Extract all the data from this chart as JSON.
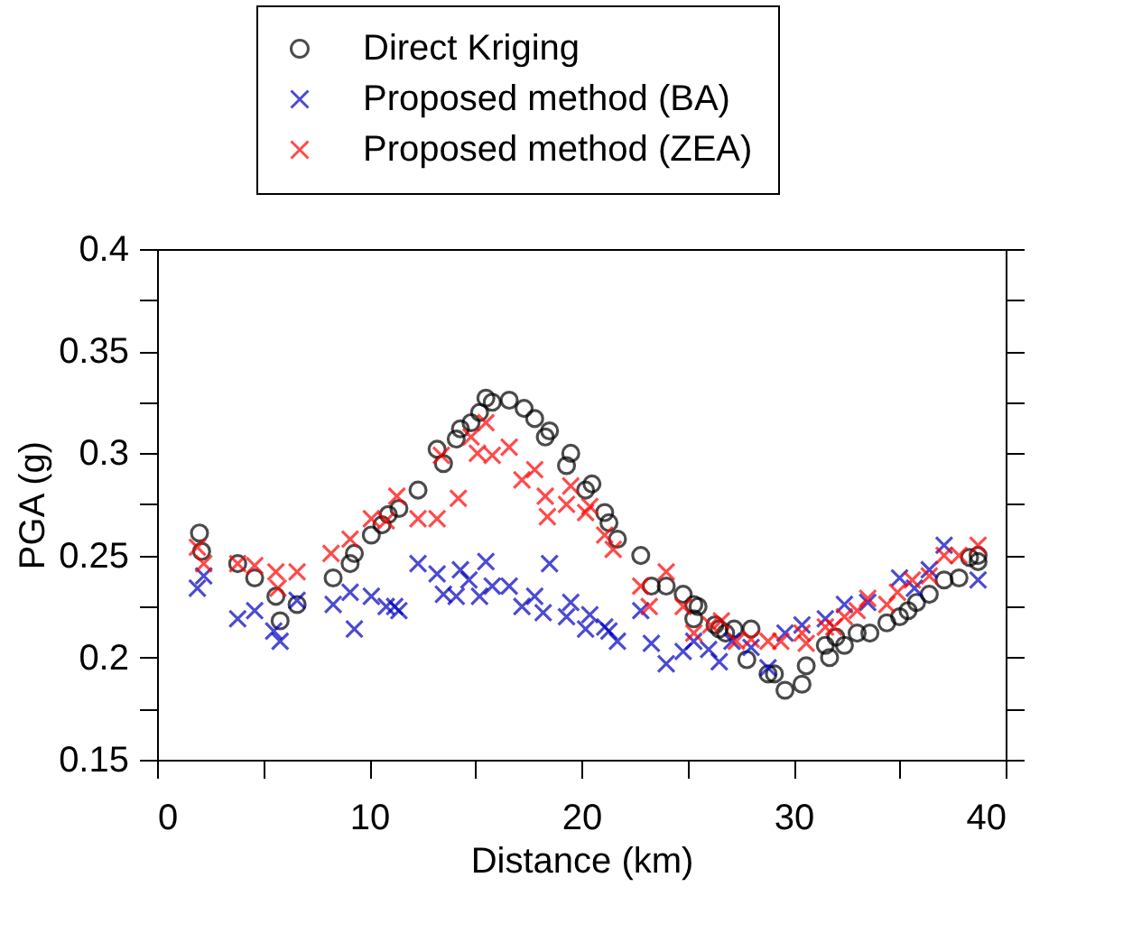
{
  "chart_data": {
    "type": "scatter",
    "xlabel": "Distance (km)",
    "ylabel": "PGA (g)",
    "xlim": [
      0,
      40
    ],
    "ylim": [
      0.15,
      0.4
    ],
    "xticks": [
      0,
      {
        "value": 5,
        "label": null
      },
      10,
      {
        "value": 15,
        "label": null
      },
      20,
      {
        "value": 25,
        "label": null
      },
      30,
      {
        "value": 35,
        "label": null
      },
      40
    ],
    "yticks": [
      0.15,
      {
        "value": 0.175,
        "label": null
      },
      0.2,
      {
        "value": 0.225,
        "label": null
      },
      0.25,
      {
        "value": 0.275,
        "label": null
      },
      0.3,
      {
        "value": 0.325,
        "label": null
      },
      0.35,
      {
        "value": 0.375,
        "label": null
      },
      0.4
    ],
    "grid": false,
    "legend": "top",
    "series": [
      {
        "name": "Direct Kriging",
        "color": "#000000",
        "marker": "circle",
        "x": [
          2.0,
          2.1,
          3.8,
          4.6,
          5.6,
          5.8,
          6.6,
          8.3,
          9.1,
          9.3,
          10.1,
          10.6,
          10.9,
          11.4,
          12.3,
          13.2,
          13.5,
          14.1,
          14.3,
          14.8,
          15.2,
          15.5,
          15.8,
          16.6,
          17.3,
          17.8,
          18.3,
          18.5,
          19.3,
          19.5,
          20.2,
          20.5,
          21.1,
          21.3,
          21.7,
          22.8,
          23.3,
          24.0,
          24.8,
          25.3,
          25.5,
          25.3,
          26.3,
          26.5,
          26.8,
          27.2,
          27.8,
          28.0,
          28.8,
          29.1,
          29.6,
          30.4,
          30.6,
          31.5,
          31.7,
          32.0,
          32.4,
          33.0,
          33.6,
          34.4,
          35.0,
          35.4,
          35.8,
          36.4,
          37.1,
          37.8,
          38.3,
          38.7,
          38.7
        ],
        "values": [
          0.261,
          0.252,
          0.246,
          0.239,
          0.23,
          0.218,
          0.226,
          0.239,
          0.246,
          0.251,
          0.26,
          0.265,
          0.27,
          0.273,
          0.282,
          0.302,
          0.295,
          0.307,
          0.312,
          0.315,
          0.32,
          0.327,
          0.325,
          0.326,
          0.322,
          0.317,
          0.308,
          0.311,
          0.294,
          0.3,
          0.282,
          0.285,
          0.271,
          0.266,
          0.258,
          0.25,
          0.235,
          0.235,
          0.231,
          0.226,
          0.225,
          0.219,
          0.216,
          0.214,
          0.212,
          0.214,
          0.199,
          0.214,
          0.192,
          0.192,
          0.184,
          0.187,
          0.196,
          0.206,
          0.2,
          0.21,
          0.206,
          0.212,
          0.212,
          0.217,
          0.22,
          0.223,
          0.227,
          0.231,
          0.238,
          0.239,
          0.249,
          0.25,
          0.247
        ]
      },
      {
        "name": "Proposed method (BA)",
        "color": "#0000c0",
        "marker": "cross",
        "x": [
          1.9,
          2.2,
          3.8,
          4.6,
          5.5,
          5.8,
          6.6,
          8.3,
          9.1,
          9.3,
          10.1,
          10.8,
          11.2,
          11.4,
          12.3,
          13.2,
          13.5,
          14.1,
          14.3,
          14.7,
          15.2,
          15.5,
          15.8,
          16.6,
          17.2,
          17.8,
          18.2,
          18.5,
          19.3,
          19.5,
          20.2,
          20.4,
          21.1,
          21.3,
          21.7,
          22.8,
          23.3,
          24.0,
          24.8,
          25.3,
          26.0,
          26.5,
          27.1,
          28.0,
          28.8,
          29.6,
          30.4,
          31.5,
          32.4,
          33.5,
          35.0,
          35.7,
          36.4,
          37.1,
          38.7
        ],
        "values": [
          0.234,
          0.24,
          0.219,
          0.223,
          0.213,
          0.208,
          0.228,
          0.226,
          0.232,
          0.214,
          0.23,
          0.225,
          0.225,
          0.223,
          0.246,
          0.241,
          0.231,
          0.23,
          0.243,
          0.238,
          0.23,
          0.247,
          0.235,
          0.235,
          0.225,
          0.23,
          0.222,
          0.246,
          0.22,
          0.227,
          0.214,
          0.221,
          0.215,
          0.213,
          0.208,
          0.223,
          0.207,
          0.197,
          0.203,
          0.208,
          0.204,
          0.198,
          0.208,
          0.205,
          0.195,
          0.212,
          0.216,
          0.219,
          0.226,
          0.227,
          0.239,
          0.234,
          0.243,
          0.255,
          0.238
        ]
      },
      {
        "name": "Proposed method (ZEA)",
        "color": "#ff0000",
        "marker": "cross",
        "x": [
          1.9,
          2.2,
          3.8,
          4.6,
          5.6,
          5.7,
          6.6,
          8.2,
          9.1,
          10.1,
          10.8,
          11.3,
          12.3,
          13.2,
          13.4,
          14.2,
          14.8,
          15.5,
          15.1,
          15.8,
          16.6,
          17.2,
          17.8,
          18.3,
          18.4,
          19.3,
          19.5,
          20.2,
          20.4,
          21.1,
          21.5,
          22.8,
          23.2,
          24.0,
          24.8,
          25.3,
          26.1,
          26.6,
          27.3,
          28.0,
          28.8,
          29.4,
          30.4,
          30.6,
          31.5,
          31.9,
          32.4,
          33.0,
          33.5,
          34.4,
          34.9,
          35.6,
          36.4,
          37.1,
          37.8,
          38.7
        ],
        "values": [
          0.254,
          0.246,
          0.246,
          0.245,
          0.242,
          0.234,
          0.242,
          0.251,
          0.258,
          0.268,
          0.267,
          0.279,
          0.268,
          0.268,
          0.299,
          0.278,
          0.308,
          0.315,
          0.3,
          0.299,
          0.303,
          0.287,
          0.292,
          0.279,
          0.269,
          0.275,
          0.284,
          0.271,
          0.274,
          0.26,
          0.253,
          0.235,
          0.225,
          0.242,
          0.225,
          0.212,
          0.216,
          0.218,
          0.208,
          0.209,
          0.208,
          0.208,
          0.212,
          0.207,
          0.215,
          0.215,
          0.22,
          0.223,
          0.229,
          0.226,
          0.232,
          0.238,
          0.24,
          0.25,
          0.25,
          0.255
        ]
      }
    ]
  }
}
